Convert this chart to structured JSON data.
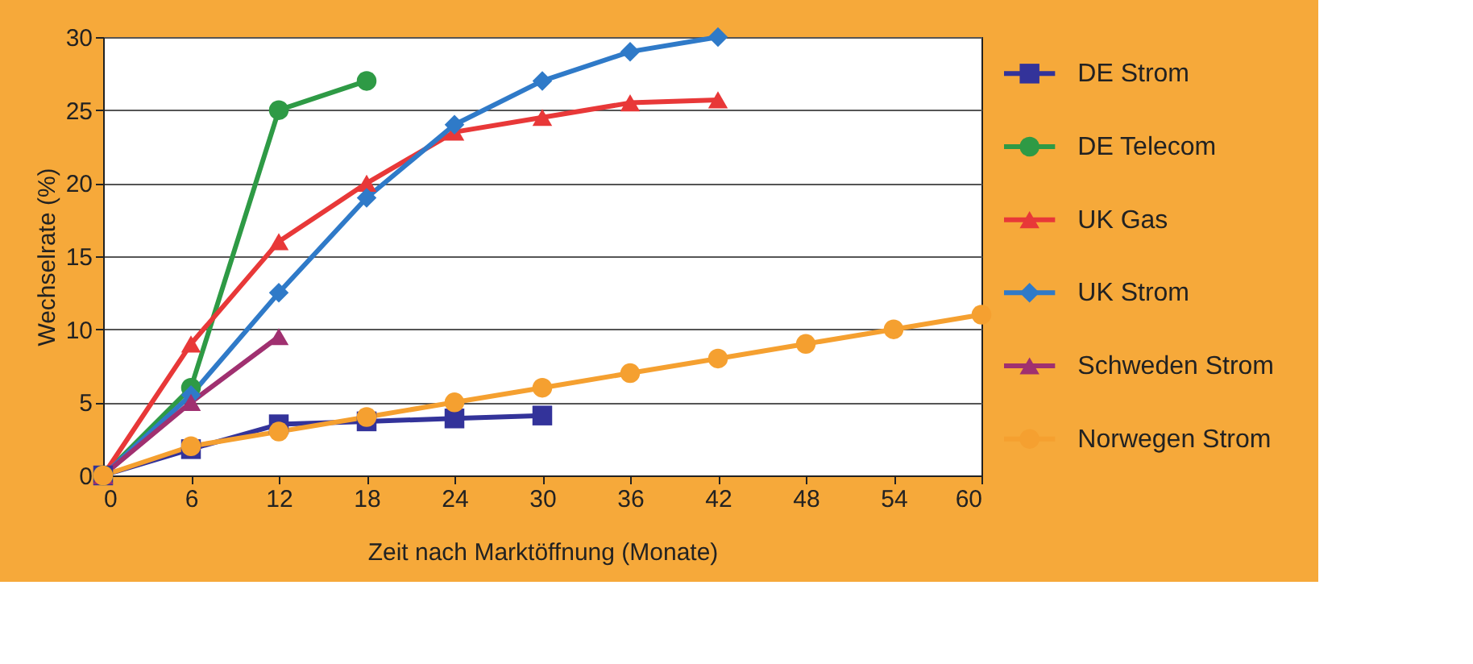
{
  "chart_data": {
    "type": "line",
    "xlabel": "Zeit nach Marktöffnung (Monate)",
    "ylabel": "Wechselrate (%)",
    "xlim": [
      0,
      60
    ],
    "xticks": [
      0,
      6,
      12,
      18,
      24,
      30,
      36,
      42,
      48,
      54,
      60
    ],
    "ylim": [
      0,
      30
    ],
    "yticks": [
      0,
      5,
      10,
      15,
      20,
      25,
      30
    ],
    "grid": "y",
    "legend": "right",
    "series": [
      {
        "name": "DE Strom",
        "color": "#33339a",
        "marker": "square",
        "x": [
          0,
          6,
          12,
          18,
          24,
          30
        ],
        "values": [
          0,
          1.8,
          3.5,
          3.7,
          3.9,
          4.1
        ]
      },
      {
        "name": "DE Telecom",
        "color": "#2e9a45",
        "marker": "circle",
        "x": [
          0,
          6,
          12,
          18
        ],
        "values": [
          0,
          6,
          25,
          27
        ]
      },
      {
        "name": "UK Gas",
        "color": "#e83838",
        "marker": "triangle",
        "x": [
          0,
          6,
          12,
          18,
          24,
          30,
          36,
          42
        ],
        "values": [
          0,
          9,
          16,
          20,
          23.5,
          24.5,
          25.5,
          25.7
        ]
      },
      {
        "name": "UK Strom",
        "color": "#2f7ac8",
        "marker": "diamond",
        "x": [
          0,
          6,
          12,
          18,
          24,
          30,
          36,
          42
        ],
        "values": [
          0,
          5.5,
          12.5,
          19,
          24,
          27,
          29,
          30
        ]
      },
      {
        "name": "Schweden Strom",
        "color": "#a03070",
        "marker": "triangle",
        "x": [
          0,
          6,
          12
        ],
        "values": [
          0,
          5,
          9.5
        ]
      },
      {
        "name": "Norwegen Strom",
        "color": "#f5a030",
        "marker": "circle",
        "x": [
          0,
          6,
          12,
          18,
          24,
          30,
          36,
          42,
          48,
          54,
          60
        ],
        "values": [
          0,
          2,
          3,
          4,
          5,
          6,
          7,
          8,
          9,
          10,
          11
        ]
      }
    ]
  }
}
